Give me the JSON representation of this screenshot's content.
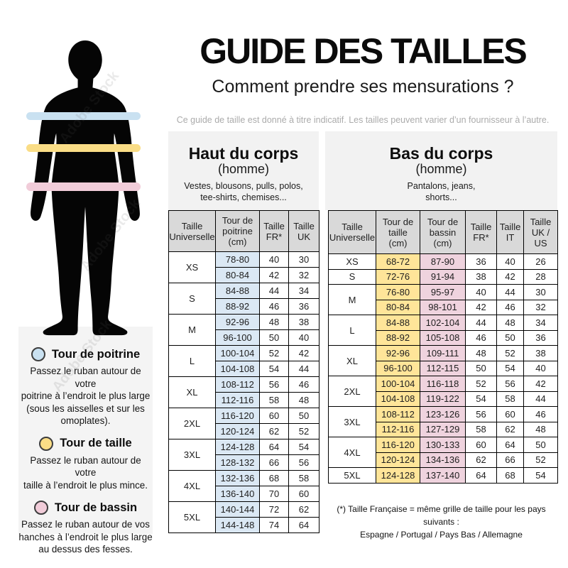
{
  "header": {
    "title": "GUIDE DES TAILLES",
    "subtitle": "Comment prendre ses mensurations ?",
    "disclaimer": "Ce guide de taille est donné à titre indicatif. Les tailles peuvent varier d’un fournisseur à l’autre."
  },
  "watermark": "Adobe Stock",
  "figure": {
    "bands": [
      {
        "name": "chest-band",
        "color": "#c9e1f1"
      },
      {
        "name": "waist-band",
        "color": "#fadd86"
      },
      {
        "name": "hips-band",
        "color": "#f1ccd9"
      }
    ]
  },
  "legend": {
    "items": [
      {
        "title": "Tour de poitrine",
        "color": "#c9e1f1",
        "description": "Passez le ruban autour de votre\npoitrine à l’endroit le plus large\n(sous les aisselles et sur les\nomoplates)."
      },
      {
        "title": "Tour de taille",
        "color": "#fadd86",
        "description": "Passez le ruban autour de votre\ntaille à l’endroit le plus mince."
      },
      {
        "title": "Tour de bassin",
        "color": "#f1ccd9",
        "description": "Passez le ruban autour de vos\nhanches à l’endroit le plus large\nau dessus des fesses."
      }
    ]
  },
  "tables": {
    "upper": {
      "name": "upper-body-size-table",
      "panel_title": "Haut du corps",
      "panel_subtitle": "(homme)",
      "panel_items": "Vestes, blousons, pulls, polos,\ntee-shirts, chemises...",
      "columns": [
        "Taille\nUniverselle",
        "Tour de\npoitrine\n(cm)",
        "Taille\nFR*",
        "Taille\nUK"
      ],
      "col_colors": {
        "1": "#dbe8f4"
      },
      "groups": [
        {
          "size": "XS",
          "rows": [
            [
              "78-80",
              "40",
              "30"
            ],
            [
              "80-84",
              "42",
              "32"
            ]
          ]
        },
        {
          "size": "S",
          "rows": [
            [
              "84-88",
              "44",
              "34"
            ],
            [
              "88-92",
              "46",
              "36"
            ]
          ]
        },
        {
          "size": "M",
          "rows": [
            [
              "92-96",
              "48",
              "38"
            ],
            [
              "96-100",
              "50",
              "40"
            ]
          ]
        },
        {
          "size": "L",
          "rows": [
            [
              "100-104",
              "52",
              "42"
            ],
            [
              "104-108",
              "54",
              "44"
            ]
          ]
        },
        {
          "size": "XL",
          "rows": [
            [
              "108-112",
              "56",
              "46"
            ],
            [
              "112-116",
              "58",
              "48"
            ]
          ]
        },
        {
          "size": "2XL",
          "rows": [
            [
              "116-120",
              "60",
              "50"
            ],
            [
              "120-124",
              "62",
              "52"
            ]
          ]
        },
        {
          "size": "3XL",
          "rows": [
            [
              "124-128",
              "64",
              "54"
            ],
            [
              "128-132",
              "66",
              "56"
            ]
          ]
        },
        {
          "size": "4XL",
          "rows": [
            [
              "132-136",
              "68",
              "58"
            ],
            [
              "136-140",
              "70",
              "60"
            ]
          ]
        },
        {
          "size": "5XL",
          "rows": [
            [
              "140-144",
              "72",
              "62"
            ],
            [
              "144-148",
              "74",
              "64"
            ]
          ]
        }
      ]
    },
    "lower": {
      "name": "lower-body-size-table",
      "panel_title": "Bas du corps",
      "panel_subtitle": "(homme)",
      "panel_items": "Pantalons, jeans,\nshorts...",
      "columns": [
        "Taille\nUniverselle",
        "Tour de\ntaille\n(cm)",
        "Tour de\nbassin\n(cm)",
        "Taille\nFR*",
        "Taille\nIT",
        "Taille\nUK /\nUS"
      ],
      "col_colors": {
        "1": "#ffe599",
        "2": "#efd3de"
      },
      "groups": [
        {
          "size": "XS",
          "rows": [
            [
              "68-72",
              "87-90",
              "36",
              "40",
              "26"
            ]
          ]
        },
        {
          "size": "S",
          "rows": [
            [
              "72-76",
              "91-94",
              "38",
              "42",
              "28"
            ]
          ]
        },
        {
          "size": "M",
          "rows": [
            [
              "76-80",
              "95-97",
              "40",
              "44",
              "30"
            ],
            [
              "80-84",
              "98-101",
              "42",
              "46",
              "32"
            ]
          ]
        },
        {
          "size": "L",
          "rows": [
            [
              "84-88",
              "102-104",
              "44",
              "48",
              "34"
            ],
            [
              "88-92",
              "105-108",
              "46",
              "50",
              "36"
            ]
          ]
        },
        {
          "size": "XL",
          "rows": [
            [
              "92-96",
              "109-111",
              "48",
              "52",
              "38"
            ],
            [
              "96-100",
              "112-115",
              "50",
              "54",
              "40"
            ]
          ]
        },
        {
          "size": "2XL",
          "rows": [
            [
              "100-104",
              "116-118",
              "52",
              "56",
              "42"
            ],
            [
              "104-108",
              "119-122",
              "54",
              "58",
              "44"
            ]
          ]
        },
        {
          "size": "3XL",
          "rows": [
            [
              "108-112",
              "123-126",
              "56",
              "60",
              "46"
            ],
            [
              "112-116",
              "127-129",
              "58",
              "62",
              "48"
            ]
          ]
        },
        {
          "size": "4XL",
          "rows": [
            [
              "116-120",
              "130-133",
              "60",
              "64",
              "50"
            ],
            [
              "120-124",
              "134-136",
              "62",
              "66",
              "52"
            ]
          ]
        },
        {
          "size": "5XL",
          "rows": [
            [
              "124-128",
              "137-140",
              "64",
              "68",
              "54"
            ]
          ]
        }
      ]
    }
  },
  "footnote": {
    "line1": "(*) Taille Française = même grille de taille pour les pays suivants :",
    "line2": "Espagne / Portugal / Pays Bas / Allemagne"
  }
}
